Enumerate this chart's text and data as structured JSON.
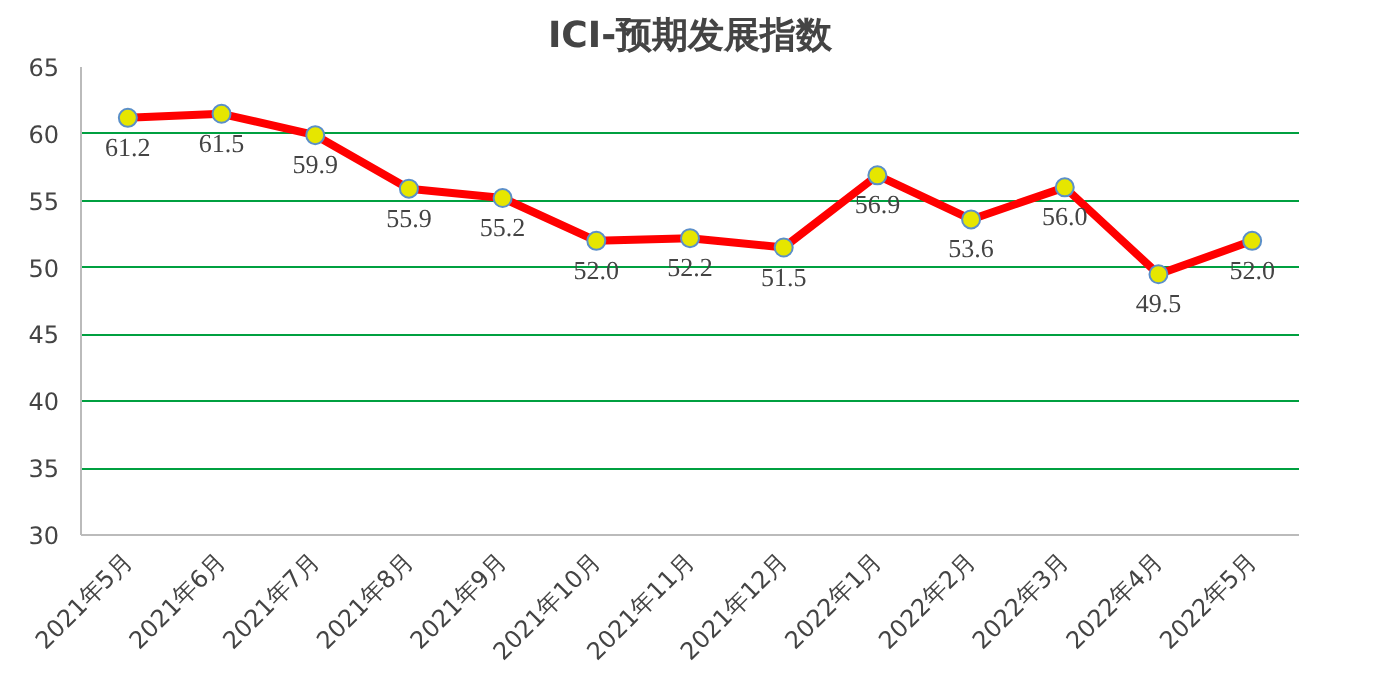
{
  "chart_data": {
    "type": "line",
    "title": "ICI-预期发展指数",
    "categories": [
      "2021年5月",
      "2021年6月",
      "2021年7月",
      "2021年8月",
      "2021年9月",
      "2021年10月",
      "2021年11月",
      "2021年12月",
      "2022年1月",
      "2022年2月",
      "2022年3月",
      "2022年4月",
      "2022年5月"
    ],
    "series": [
      {
        "color": "#ff0000",
        "values": [
          61.2,
          61.5,
          59.9,
          55.9,
          55.2,
          52.0,
          52.2,
          51.5,
          56.9,
          53.6,
          56.0,
          49.5,
          52.0
        ],
        "value_labels": [
          "61.2",
          "61.5",
          "59.9",
          "55.9",
          "55.2",
          "52.0",
          "52.2",
          "51.5",
          "56.9",
          "53.6",
          "56.0",
          "49.5",
          "52.0"
        ]
      }
    ],
    "ylim": [
      30,
      65
    ],
    "yticks": [
      30,
      35,
      40,
      45,
      50,
      55,
      60,
      65
    ],
    "grid": "y",
    "marker": "circle",
    "line_style": "solid"
  }
}
